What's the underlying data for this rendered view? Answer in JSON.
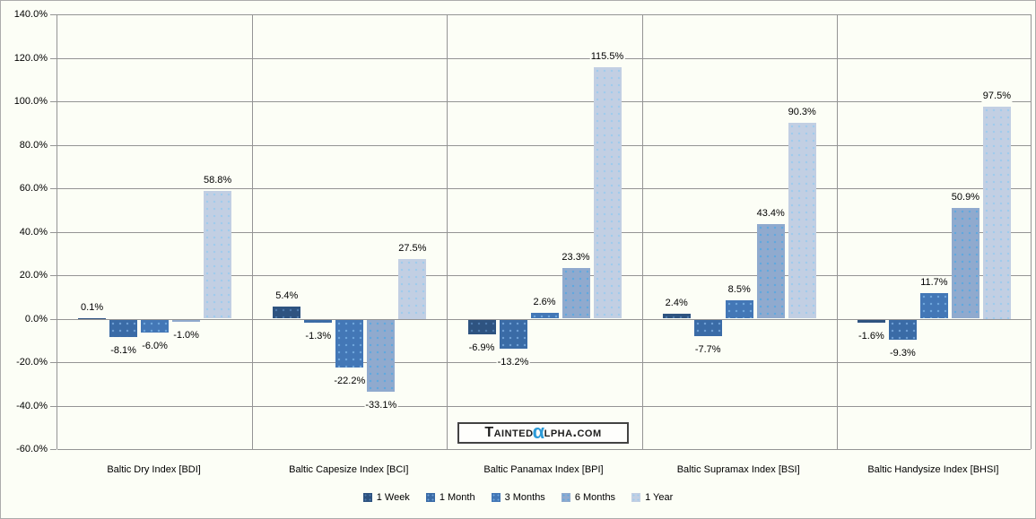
{
  "chart_data": {
    "type": "bar",
    "title": "",
    "xlabel": "",
    "ylabel": "",
    "ylim": [
      -60,
      140
    ],
    "ytick_step": 20,
    "ytick_labels": [
      "140.0%",
      "120.0%",
      "100.0%",
      "80.0%",
      "60.0%",
      "40.0%",
      "20.0%",
      "0.0%",
      "-20.0%",
      "-40.0%",
      "-60.0%"
    ],
    "grid": true,
    "legend_position": "bottom",
    "categories": [
      "Baltic Dry Index [BDI]",
      "Baltic Capesize Index [BCI]",
      "Baltic Panamax Index [BPI]",
      "Baltic Supramax Index [BSI]",
      "Baltic Handysize Index [BHSI]"
    ],
    "series": [
      {
        "name": "1 Week",
        "color": "#2E5380",
        "dot_color": "#4F7BAD",
        "values": [
          0.1,
          5.4,
          -6.9,
          2.4,
          -1.6
        ],
        "labels": [
          "0.1%",
          "5.4%",
          "-6.9%",
          "2.4%",
          "-1.6%"
        ]
      },
      {
        "name": "1 Month",
        "color": "#3A6BA6",
        "dot_color": "#6FA0D6",
        "values": [
          -8.1,
          -1.3,
          -13.2,
          -7.7,
          -9.3
        ],
        "labels": [
          "-8.1%",
          "-1.3%",
          "-13.2%",
          "-7.7%",
          "-9.3%"
        ]
      },
      {
        "name": "3 Months",
        "color": "#4377B6",
        "dot_color": "#6FA6DC",
        "values": [
          -6.0,
          -22.2,
          2.6,
          8.5,
          11.7
        ],
        "labels": [
          "-6.0%",
          "-22.2%",
          "2.6%",
          "8.5%",
          "11.7%"
        ]
      },
      {
        "name": "6 Months",
        "color": "#90AACE",
        "dot_color": "#5FA8DF",
        "values": [
          -1.0,
          -33.1,
          23.3,
          43.4,
          50.9
        ],
        "labels": [
          "-1.0%",
          "-33.1%",
          "23.3%",
          "43.4%",
          "50.9%"
        ]
      },
      {
        "name": "1 Year",
        "color": "#C2CFE3",
        "dot_color": "#9FCBEC",
        "values": [
          58.8,
          27.5,
          115.5,
          90.3,
          97.5
        ],
        "labels": [
          "58.8%",
          "27.5%",
          "115.5%",
          "90.3%",
          "97.5%"
        ]
      }
    ]
  },
  "watermark": {
    "prefix": "Tainted",
    "alpha": "α",
    "suffix": "lpha.com",
    "alpha_color": "#2D9BD8"
  }
}
